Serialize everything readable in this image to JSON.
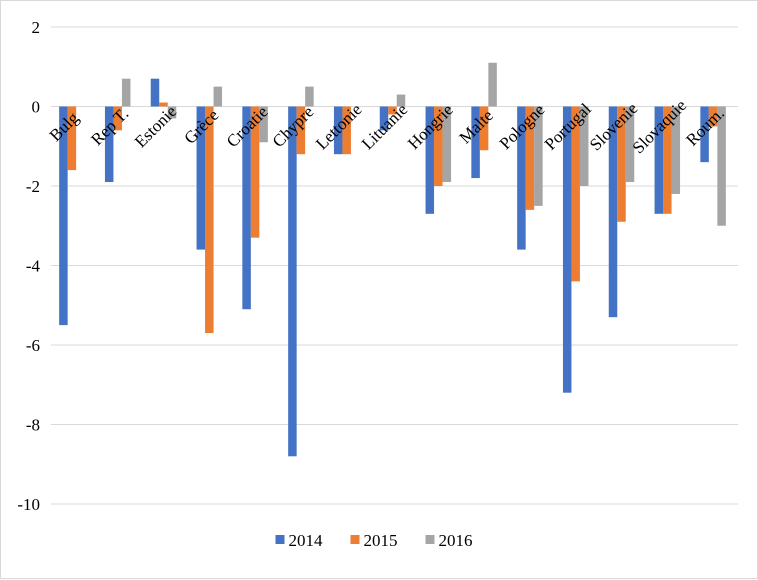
{
  "chart_data": {
    "type": "bar",
    "title": "",
    "xlabel": "",
    "ylabel": "",
    "ylim": [
      -10,
      2
    ],
    "yticks": [
      2,
      0,
      -2,
      -4,
      -6,
      -8,
      -10
    ],
    "grid": true,
    "legend_position": "bottom",
    "categories": [
      "Bulg",
      "Rep T.",
      "Estonie",
      "Grèce",
      "Croatie",
      "Chypre",
      "Lettonie",
      "Lituanie",
      "Hongrie",
      "Malte",
      "Pologne",
      "Portugal",
      "Slovenie",
      "Slovaquie",
      "Roum."
    ],
    "series": [
      {
        "name": "2014",
        "color": "#4472c4",
        "values": [
          -5.5,
          -1.9,
          0.7,
          -3.6,
          -5.1,
          -8.8,
          -1.2,
          -0.6,
          -2.7,
          -1.8,
          -3.6,
          -7.2,
          -5.3,
          -2.7,
          -1.4
        ]
      },
      {
        "name": "2015",
        "color": "#ed7d31",
        "values": [
          -1.6,
          -0.6,
          0.1,
          -5.7,
          -3.3,
          -1.2,
          -1.2,
          -0.2,
          -2.0,
          -1.1,
          -2.6,
          -4.4,
          -2.9,
          -2.7,
          -0.5
        ]
      },
      {
        "name": "2016",
        "color": "#a5a5a5",
        "values": [
          0.0,
          0.7,
          -0.3,
          0.5,
          -0.9,
          0.5,
          0.0,
          0.3,
          -1.9,
          1.1,
          -2.5,
          -2.0,
          -1.9,
          -2.2,
          -3.0
        ]
      }
    ]
  }
}
